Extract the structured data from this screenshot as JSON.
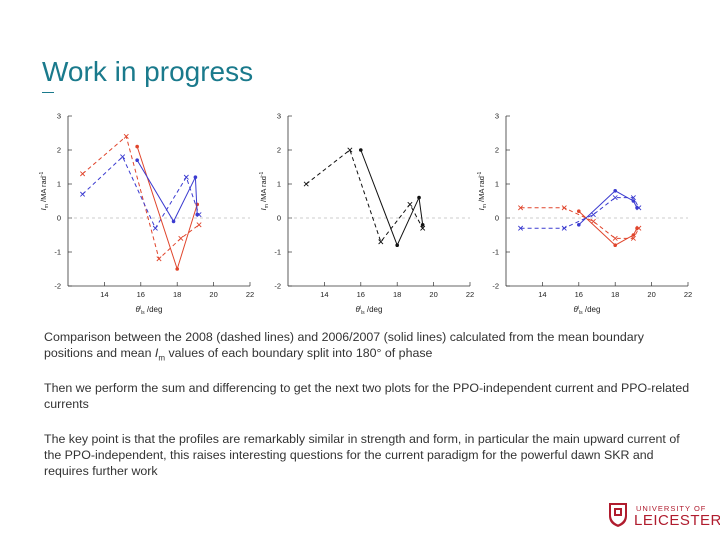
{
  "slide": {
    "title": "Work in progress",
    "caption1_a": "Comparison between the 2008 (dashed lines) and 2006/2007 (solid lines) calculated from the mean boundary positions and mean ",
    "caption1_sym": "I",
    "caption1_sub": "m",
    "caption1_b": " values of each boundary split into 180° of phase",
    "caption2": "Then we perform the sum and differencing to get the next two plots for the PPO-independent current and PPO-related currents",
    "caption3": "The key point is that the profiles are remarkably similar in strength and form, in particular the main upward current of the PPO-independent, this raises interesting questions for the current paradigm for the powerful dawn SKR and requires further work"
  },
  "logo": {
    "line1": "UNIVERSITY OF",
    "line2": "LEICESTER"
  },
  "colors": {
    "red": "#e0452c",
    "blue": "#3b3bd0",
    "black": "#111111",
    "axis": "#333333",
    "title": "#1a7a8c"
  },
  "chart_data": [
    {
      "type": "line",
      "title": "",
      "xlabel_sym": "θ",
      "xlabel_sup": "i",
      "xlabel_sub": "ls",
      "xlabel_unit": " /deg",
      "ylabel_sym": "I",
      "ylabel_sub": "m",
      "ylabel_unit": " /MA rad",
      "ylabel_sup": "-1",
      "xlim": [
        12,
        22
      ],
      "ylim": [
        -2,
        3
      ],
      "xticks": [
        14,
        16,
        18,
        20,
        22
      ],
      "yticks": [
        -2,
        -1,
        0,
        1,
        2,
        3
      ],
      "zero_line": true,
      "series": [
        {
          "name": "2008 red",
          "color": "red",
          "style": "dashed",
          "marker": "x",
          "x": [
            12.8,
            15.2,
            17.0,
            18.2,
            19.2
          ],
          "y": [
            1.3,
            2.4,
            -1.2,
            -0.6,
            -0.2
          ]
        },
        {
          "name": "2008 blue",
          "color": "blue",
          "style": "dashed",
          "marker": "x",
          "x": [
            12.8,
            15.0,
            16.8,
            18.5,
            19.2
          ],
          "y": [
            0.7,
            1.8,
            -0.3,
            1.2,
            0.1
          ]
        },
        {
          "name": "2006/2007 red",
          "color": "red",
          "style": "solid",
          "marker": "o",
          "x": [
            15.8,
            18.0,
            19.1
          ],
          "y": [
            2.1,
            -1.5,
            0.4
          ]
        },
        {
          "name": "2006/2007 blue",
          "color": "blue",
          "style": "solid",
          "marker": "o",
          "x": [
            15.8,
            17.8,
            19.0,
            19.1
          ],
          "y": [
            1.7,
            -0.1,
            1.2,
            0.1
          ]
        }
      ]
    },
    {
      "type": "line",
      "title": "",
      "xlabel_sym": "θ",
      "xlabel_sup": "i",
      "xlabel_sub": "ls",
      "xlabel_unit": " /deg",
      "ylabel_sym": "I",
      "ylabel_sub": "m",
      "ylabel_unit": " /MA rad",
      "ylabel_sup": "-1",
      "xlim": [
        12,
        22
      ],
      "ylim": [
        -2,
        3
      ],
      "xticks": [
        14,
        16,
        18,
        20,
        22
      ],
      "yticks": [
        -2,
        -1,
        0,
        1,
        2,
        3
      ],
      "zero_line": true,
      "series": [
        {
          "name": "2008 sum",
          "color": "black",
          "style": "dashed",
          "marker": "x",
          "x": [
            13.0,
            15.4,
            17.1,
            18.7,
            19.4
          ],
          "y": [
            1.0,
            2.0,
            -0.7,
            0.4,
            -0.3
          ]
        },
        {
          "name": "2006/2007 sum",
          "color": "black",
          "style": "solid",
          "marker": "o",
          "x": [
            16.0,
            18.0,
            19.2,
            19.4
          ],
          "y": [
            2.0,
            -0.8,
            0.6,
            -0.2
          ]
        }
      ]
    },
    {
      "type": "line",
      "title": "",
      "xlabel_sym": "θ",
      "xlabel_sup": "i",
      "xlabel_sub": "ls",
      "xlabel_unit": " /deg",
      "ylabel_sym": "I",
      "ylabel_sub": "m",
      "ylabel_unit": " /MA rad",
      "ylabel_sup": "-1",
      "xlim": [
        12,
        22
      ],
      "ylim": [
        -2,
        3
      ],
      "xticks": [
        14,
        16,
        18,
        20,
        22
      ],
      "yticks": [
        -2,
        -1,
        0,
        1,
        2,
        3
      ],
      "zero_line": true,
      "series": [
        {
          "name": "2008 red",
          "color": "red",
          "style": "dashed",
          "marker": "x",
          "x": [
            12.8,
            15.2,
            16.8,
            18.0,
            19.0,
            19.3
          ],
          "y": [
            0.3,
            0.3,
            -0.1,
            -0.6,
            -0.6,
            -0.3
          ]
        },
        {
          "name": "2008 blue",
          "color": "blue",
          "style": "dashed",
          "marker": "x",
          "x": [
            12.8,
            15.2,
            16.8,
            18.0,
            19.0,
            19.3
          ],
          "y": [
            -0.3,
            -0.3,
            0.1,
            0.6,
            0.6,
            0.3
          ]
        },
        {
          "name": "2006/2007 red",
          "color": "red",
          "style": "solid",
          "marker": "o",
          "x": [
            16.0,
            18.0,
            19.0,
            19.2
          ],
          "y": [
            0.2,
            -0.8,
            -0.5,
            -0.3
          ]
        },
        {
          "name": "2006/2007 blue",
          "color": "blue",
          "style": "solid",
          "marker": "o",
          "x": [
            16.0,
            18.0,
            19.0,
            19.2
          ],
          "y": [
            -0.2,
            0.8,
            0.5,
            0.3
          ]
        }
      ]
    }
  ]
}
